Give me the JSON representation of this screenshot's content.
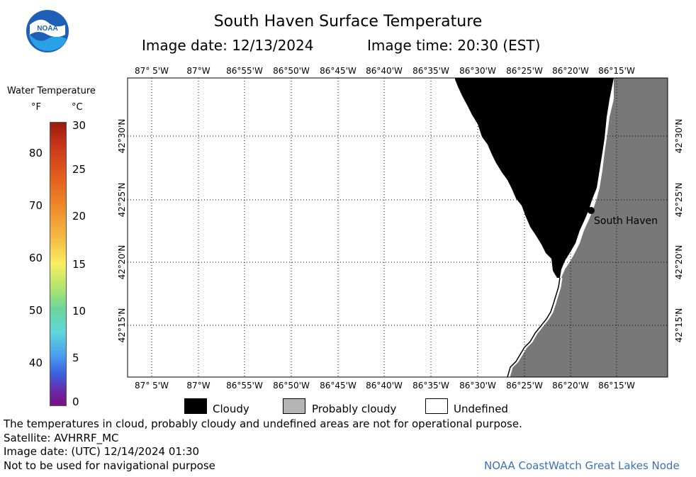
{
  "header": {
    "title": "South Haven Surface Temperature",
    "image_date": "Image date: 12/13/2024",
    "image_time": "Image time: 20:30 (EST)",
    "logo_text": "NOAA"
  },
  "colorbar": {
    "title": "Water Temperature",
    "unit_f": "°F",
    "unit_c": "°C",
    "f_ticks": [
      "80",
      "70",
      "60",
      "50",
      "40"
    ],
    "c_ticks": [
      "30",
      "25",
      "20",
      "15",
      "10",
      "5",
      "0"
    ]
  },
  "map": {
    "lon_labels": [
      "87° 5'W",
      "87°W",
      "86°55'W",
      "86°50'W",
      "86°45'W",
      "86°40'W",
      "86°35'W",
      "86°30'W",
      "86°25'W",
      "86°20'W",
      "86°15'W"
    ],
    "lat_labels": [
      "42°30'N",
      "42°25'N",
      "42°20'N",
      "42°15'N"
    ],
    "city_label": "South Haven",
    "colors": {
      "cloudy": "#000000",
      "probably_cloudy": "#787878",
      "undefined": "#ffffff",
      "grid": "#000000"
    }
  },
  "legend": {
    "cloudy": "Cloudy",
    "probably_cloudy": "Probably cloudy",
    "undefined": "Undefined"
  },
  "footer": {
    "line1": "The temperatures in cloud, probably cloudy and undefined areas are not for operational purpose.",
    "line2": "Satellite: AVHRRF_MC",
    "line3": "Image date: (UTC) 12/14/2024  01:30",
    "line4": "Not to be used for navigational purpose",
    "credit": "NOAA CoastWatch Great Lakes Node"
  }
}
